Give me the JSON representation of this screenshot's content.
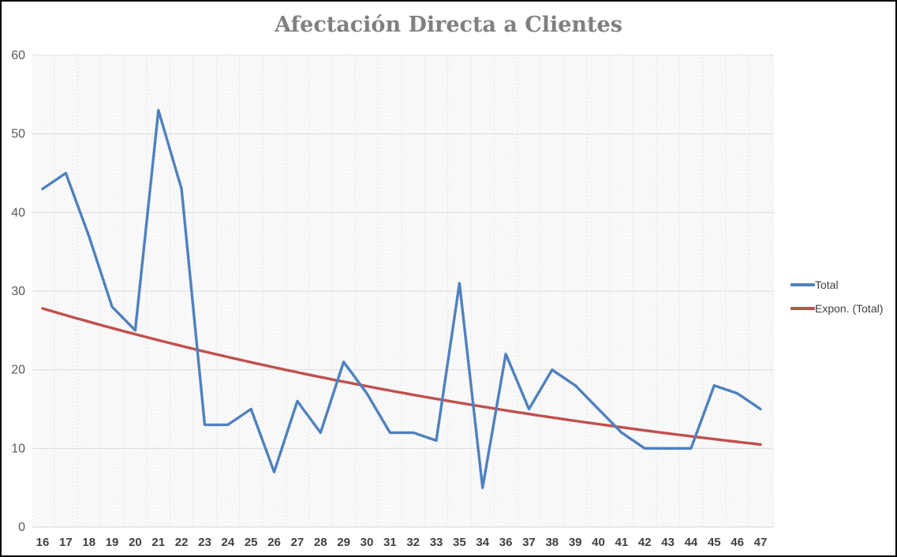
{
  "chart_data": {
    "type": "line",
    "title": "Afectación Directa a Clientes",
    "categories": [
      "16",
      "17",
      "18",
      "19",
      "20",
      "21",
      "22",
      "23",
      "24",
      "25",
      "26",
      "27",
      "28",
      "29",
      "30",
      "31",
      "32",
      "33",
      "35",
      "34",
      "36",
      "37",
      "38",
      "39",
      "40",
      "41",
      "42",
      "43",
      "44",
      "45",
      "46",
      "47"
    ],
    "series": [
      {
        "name": "Total",
        "color": "#4F81BD",
        "values": [
          43,
          45,
          37,
          28,
          25,
          53,
          43,
          13,
          13,
          15,
          7,
          16,
          12,
          21,
          17,
          12,
          12,
          11,
          31,
          5,
          22,
          15,
          20,
          18,
          15,
          12,
          10,
          10,
          10,
          18,
          17,
          15
        ]
      },
      {
        "name": "Expon. (Total)",
        "color": "#C0504D",
        "kind": "exponential_trendline",
        "start_value": 27.8,
        "end_value": 10.5
      }
    ],
    "xlabel": "",
    "ylabel": "",
    "ylim": [
      0,
      60
    ],
    "yticks": [
      0,
      10,
      20,
      30,
      40,
      50,
      60
    ],
    "grid": true,
    "plot_fill": "diagonal-hatch",
    "legend_position": "right"
  },
  "legend": {
    "items": [
      {
        "label": "Total",
        "color": "#4F81BD"
      },
      {
        "label": "Expon. (Total)",
        "color": "#C0504D"
      }
    ]
  },
  "colors": {
    "series_blue": "#4F81BD",
    "trend_red": "#C0504D",
    "title_gray": "#808080",
    "hgrid": "#DCDCDC",
    "vgrid": "#F0F0F0",
    "hatch": "#EAEAEA",
    "axis_line": "#D6D6D6"
  }
}
